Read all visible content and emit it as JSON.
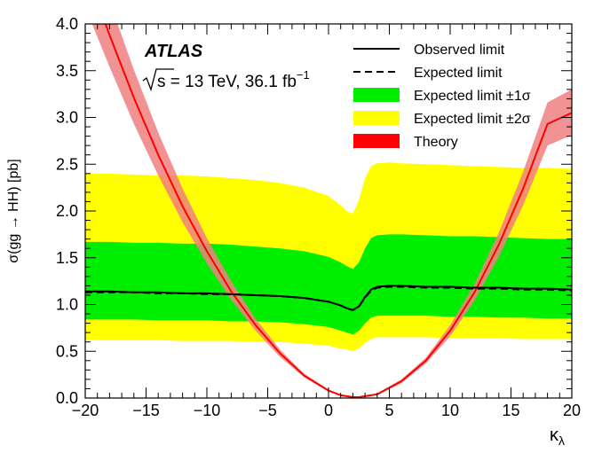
{
  "chart_data": {
    "type": "line",
    "experiment_label": "ATLAS",
    "energy_label": {
      "sqrt": "s",
      "text": " = 13 TeV, 36.1 fb",
      "superscript": "−1"
    },
    "xlabel": "κ",
    "xlabel_subscript": "λ",
    "ylabel": "σ(gg → HH) [pb]",
    "xlim": [
      -20,
      20
    ],
    "ylim": [
      0,
      4
    ],
    "x_ticks": [
      -20,
      -15,
      -10,
      -5,
      0,
      5,
      10,
      15,
      20
    ],
    "x_tick_labels": [
      "−20",
      "−15",
      "−10",
      "−5",
      "0",
      "5",
      "10",
      "15",
      "20"
    ],
    "y_ticks": [
      0,
      0.5,
      1,
      1.5,
      2,
      2.5,
      3,
      3.5,
      4
    ],
    "y_tick_labels": [
      "0.0",
      "0.5",
      "1.0",
      "1.5",
      "2.0",
      "2.5",
      "3.0",
      "3.5",
      "4.0"
    ],
    "grid": false,
    "legend_position": "top-right",
    "colors": {
      "observed": "#000000",
      "expected": "#000000",
      "band_1sigma": "#00ee00",
      "band_2sigma": "#ffff00",
      "theory": "#ff0000",
      "theory_band": "#f08080"
    },
    "legend": [
      {
        "label": "Observed limit",
        "style": "solid"
      },
      {
        "label": "Expected limit",
        "style": "dashed"
      },
      {
        "label": "Expected limit ±1σ",
        "style": "band1"
      },
      {
        "label": "Expected limit ±2σ",
        "style": "band2"
      },
      {
        "label": "Theory",
        "style": "theory"
      }
    ],
    "x": [
      -20,
      -18,
      -16,
      -14,
      -12,
      -10,
      -8,
      -6,
      -4,
      -2,
      0,
      1,
      1.5,
      2,
      2.5,
      3,
      3.5,
      4,
      5,
      6,
      8,
      10,
      12,
      14,
      16,
      18,
      20
    ],
    "series": [
      {
        "name": "Observed limit",
        "values": [
          1.14,
          1.14,
          1.13,
          1.13,
          1.12,
          1.12,
          1.11,
          1.1,
          1.09,
          1.07,
          1.03,
          0.99,
          0.96,
          0.94,
          0.98,
          1.08,
          1.16,
          1.19,
          1.2,
          1.2,
          1.19,
          1.19,
          1.18,
          1.18,
          1.17,
          1.17,
          1.16
        ]
      },
      {
        "name": "Expected limit",
        "values": [
          1.13,
          1.13,
          1.13,
          1.12,
          1.12,
          1.11,
          1.11,
          1.1,
          1.09,
          1.07,
          1.03,
          0.99,
          0.96,
          0.94,
          0.98,
          1.07,
          1.15,
          1.18,
          1.19,
          1.19,
          1.18,
          1.18,
          1.17,
          1.17,
          1.16,
          1.16,
          1.15
        ]
      },
      {
        "name": "Expected limit ±1σ",
        "band_low": [
          0.84,
          0.84,
          0.84,
          0.83,
          0.83,
          0.83,
          0.82,
          0.82,
          0.81,
          0.79,
          0.76,
          0.72,
          0.7,
          0.68,
          0.72,
          0.8,
          0.86,
          0.88,
          0.88,
          0.88,
          0.88,
          0.87,
          0.87,
          0.86,
          0.86,
          0.85,
          0.85
        ],
        "band_high": [
          1.67,
          1.67,
          1.66,
          1.66,
          1.65,
          1.65,
          1.64,
          1.62,
          1.6,
          1.57,
          1.51,
          1.45,
          1.41,
          1.38,
          1.45,
          1.6,
          1.71,
          1.74,
          1.75,
          1.75,
          1.74,
          1.73,
          1.73,
          1.72,
          1.71,
          1.7,
          1.7
        ]
      },
      {
        "name": "Expected limit ±2σ",
        "band_low": [
          0.62,
          0.62,
          0.62,
          0.62,
          0.61,
          0.61,
          0.61,
          0.6,
          0.6,
          0.58,
          0.56,
          0.53,
          0.52,
          0.5,
          0.53,
          0.59,
          0.63,
          0.65,
          0.65,
          0.65,
          0.65,
          0.64,
          0.64,
          0.64,
          0.63,
          0.63,
          0.63
        ],
        "band_high": [
          2.4,
          2.4,
          2.39,
          2.38,
          2.38,
          2.37,
          2.35,
          2.33,
          2.3,
          2.25,
          2.16,
          2.06,
          2.0,
          1.97,
          2.12,
          2.35,
          2.48,
          2.51,
          2.52,
          2.51,
          2.5,
          2.49,
          2.48,
          2.47,
          2.46,
          2.46,
          2.45
        ]
      }
    ],
    "theory": {
      "name": "Theory",
      "x": [
        -20,
        -18,
        -16,
        -14,
        -12,
        -10,
        -8,
        -6,
        -4,
        -2,
        0,
        1,
        2,
        2.5,
        3,
        4,
        6,
        8,
        10,
        12,
        14,
        16,
        18,
        20
      ],
      "values": [
        4.6,
        3.88,
        3.21,
        2.6,
        2.05,
        1.57,
        1.14,
        0.78,
        0.48,
        0.24,
        0.08,
        0.03,
        0.01,
        0.01,
        0.02,
        0.04,
        0.18,
        0.4,
        0.72,
        1.13,
        1.64,
        2.24,
        2.93,
        3.05
      ],
      "band_low": [
        4.18,
        3.54,
        2.93,
        2.38,
        1.88,
        1.44,
        1.05,
        0.72,
        0.44,
        0.22,
        0.07,
        0.02,
        0.005,
        0.005,
        0.015,
        0.03,
        0.16,
        0.37,
        0.66,
        1.04,
        1.51,
        2.06,
        2.7,
        2.81
      ],
      "band_high": [
        5.05,
        4.24,
        3.51,
        2.84,
        2.24,
        1.71,
        1.25,
        0.85,
        0.52,
        0.26,
        0.09,
        0.035,
        0.02,
        0.015,
        0.025,
        0.05,
        0.2,
        0.43,
        0.78,
        1.22,
        1.77,
        2.42,
        3.16,
        3.3
      ]
    }
  }
}
